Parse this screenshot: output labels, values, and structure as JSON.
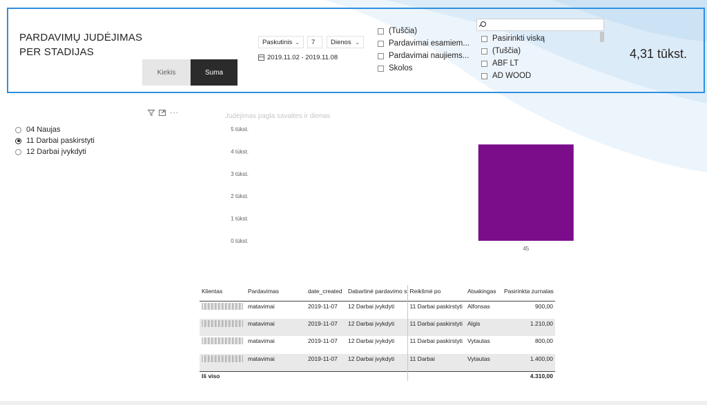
{
  "header": {
    "title_line1": "PARDAVIMŲ JUDĖJIMAS",
    "title_line2": "PER STADIJAS",
    "toggle": {
      "kiekis": "Kiekis",
      "suma": "Suma",
      "selected": "Suma"
    },
    "date_filter": {
      "mode": "Paskutinis",
      "count": "7",
      "unit": "Dienos",
      "range": "2019.11.02 - 2019.11.08"
    },
    "type_options": [
      "(Tuščia)",
      "Pardavimai esamiem...",
      "Pardavimai naujiems...",
      "Skolos"
    ],
    "client_slicer": {
      "search_placeholder": "",
      "options": [
        "Pasirinkti viską",
        "(Tuščia)",
        "ABF LT",
        "AD WOOD"
      ]
    },
    "kpi": "4,31 tūkst."
  },
  "stage_slicer": {
    "options": [
      {
        "label": "04 Naujas",
        "selected": false
      },
      {
        "label": "11 Darbai paskirstyti",
        "selected": true
      },
      {
        "label": "12 Darbai įvykdyti",
        "selected": false
      }
    ]
  },
  "chart_data": {
    "type": "bar",
    "title": "Judėjimas pagla savaites ir dienas",
    "categories": [
      "45"
    ],
    "values": [
      4310
    ],
    "ylim": [
      0,
      5000
    ],
    "yticks": [
      "0 tūkst.",
      "1 tūkst.",
      "2 tūkst.",
      "3 tūkst.",
      "4 tūkst.",
      "5 tūkst."
    ],
    "bar_color": "#7b0d8b",
    "grid": false
  },
  "table": {
    "columns": [
      "Klientas",
      "Pardavimas",
      "date_created",
      "Dabartinė pardavimo stadija",
      "Reikšmė po",
      "Atsakingas",
      "Pasirinkta zurnalas"
    ],
    "rows": [
      {
        "pardavimas": "matavimai",
        "date": "2019-11-07",
        "stadija": "12 Darbai įvykdyti",
        "reiksme": "11 Darbai paskirstyti",
        "atsakingas": "Alfonsas",
        "suma": "900,00"
      },
      {
        "pardavimas": "matavimai",
        "date": "2019-11-07",
        "stadija": "12 Darbai įvykdyti",
        "reiksme": "11 Darbai paskirstyti",
        "atsakingas": "Algis",
        "suma": "1.210,00"
      },
      {
        "pardavimas": "matavimai",
        "date": "2019-11-07",
        "stadija": "12 Darbai įvykdyti",
        "reiksme": "11 Darbai paskirstyti",
        "atsakingas": "Vytautas",
        "suma": "800,00"
      },
      {
        "pardavimas": "matavimai",
        "date": "2019-11-07",
        "stadija": "12 Darbai įvykdyti",
        "reiksme": "11 Darbai",
        "atsakingas": "Vytautas",
        "suma": "1.400,00"
      }
    ],
    "total_label": "Iš viso",
    "total_value": "4.310,00"
  },
  "colors": {
    "accent_border": "#2d8fdf",
    "bar": "#7b0d8b",
    "suma_bg": "#2b2b2b",
    "kiekis_bg": "#e6e6e6"
  }
}
